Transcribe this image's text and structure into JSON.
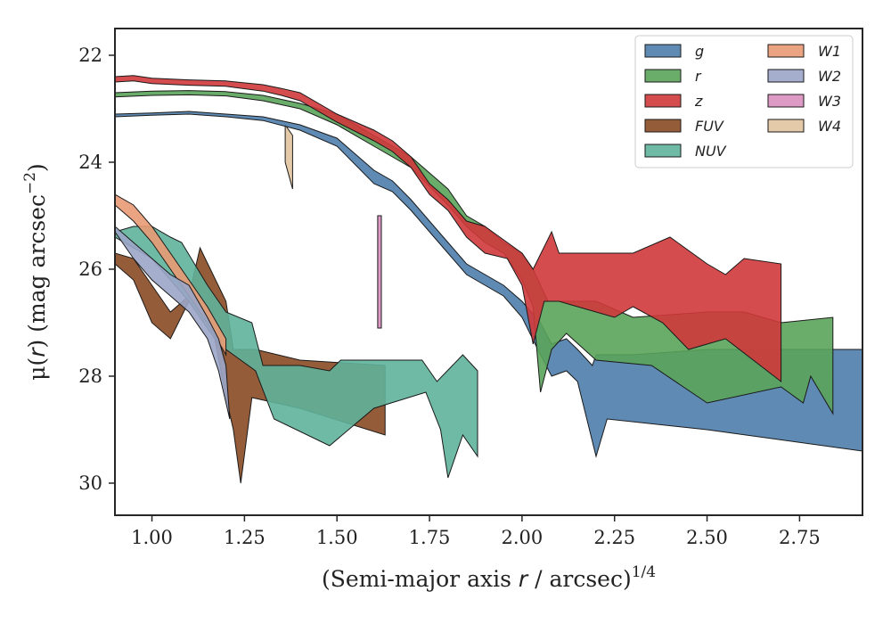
{
  "chart_data": {
    "type": "area",
    "xlabel_parts": [
      "(Semi-major axis ",
      "r",
      " / arcsec)",
      "1/4"
    ],
    "ylabel_parts": [
      "μ(",
      "r",
      ") (mag arcsec",
      "−2",
      ")"
    ],
    "xlim": [
      0.9,
      2.92
    ],
    "ylim": [
      30.6,
      21.5
    ],
    "y_inverted": true,
    "xticks": [
      1.0,
      1.25,
      1.5,
      1.75,
      2.0,
      2.25,
      2.5,
      2.75
    ],
    "xtick_labels": [
      "1.00",
      "1.25",
      "1.50",
      "1.75",
      "2.00",
      "2.25",
      "2.50",
      "2.75"
    ],
    "yticks": [
      22,
      24,
      26,
      28,
      30
    ],
    "ytick_labels": [
      "22",
      "24",
      "26",
      "28",
      "30"
    ],
    "legend_position": "top-right",
    "series": [
      {
        "name": "FUV",
        "color": "#8a4a23",
        "upper": [
          [
            0.9,
            25.7
          ],
          [
            0.95,
            25.8
          ],
          [
            1.0,
            26.3
          ],
          [
            1.05,
            26.8
          ],
          [
            1.1,
            26.5
          ],
          [
            1.13,
            25.6
          ],
          [
            1.2,
            26.6
          ],
          [
            1.22,
            27.5
          ],
          [
            1.25,
            27.5
          ],
          [
            1.28,
            27.5
          ],
          [
            1.4,
            27.7
          ],
          [
            1.63,
            27.8
          ]
        ],
        "lower": [
          [
            0.9,
            25.9
          ],
          [
            0.95,
            26.2
          ],
          [
            1.0,
            27.0
          ],
          [
            1.05,
            27.3
          ],
          [
            1.1,
            26.6
          ],
          [
            1.17,
            27.3
          ],
          [
            1.2,
            28.4
          ],
          [
            1.22,
            29.0
          ],
          [
            1.24,
            30.0
          ],
          [
            1.27,
            28.4
          ],
          [
            1.4,
            28.6
          ],
          [
            1.63,
            29.1
          ]
        ]
      },
      {
        "name": "NUV",
        "color": "#5fb39a",
        "upper": [
          [
            0.9,
            25.3
          ],
          [
            0.95,
            25.2
          ],
          [
            1.0,
            25.2
          ],
          [
            1.05,
            25.4
          ],
          [
            1.08,
            25.5
          ],
          [
            1.15,
            26.3
          ],
          [
            1.2,
            26.8
          ],
          [
            1.27,
            27.0
          ],
          [
            1.3,
            27.8
          ],
          [
            1.4,
            27.8
          ],
          [
            1.48,
            27.9
          ],
          [
            1.51,
            27.7
          ],
          [
            1.6,
            27.7
          ],
          [
            1.73,
            27.7
          ],
          [
            1.77,
            28.1
          ],
          [
            1.84,
            27.6
          ],
          [
            1.88,
            27.9
          ]
        ],
        "lower": [
          [
            0.9,
            25.4
          ],
          [
            0.95,
            25.6
          ],
          [
            1.0,
            25.8
          ],
          [
            1.05,
            26.2
          ],
          [
            1.1,
            26.6
          ],
          [
            1.18,
            27.4
          ],
          [
            1.22,
            27.6
          ],
          [
            1.28,
            27.9
          ],
          [
            1.33,
            28.8
          ],
          [
            1.48,
            29.3
          ],
          [
            1.6,
            28.6
          ],
          [
            1.74,
            28.3
          ],
          [
            1.78,
            29.0
          ],
          [
            1.8,
            29.9
          ],
          [
            1.84,
            29.1
          ],
          [
            1.88,
            29.5
          ]
        ]
      },
      {
        "name": "W1",
        "color": "#e89a74",
        "upper": [
          [
            0.9,
            24.6
          ],
          [
            0.95,
            24.8
          ],
          [
            1.0,
            25.2
          ],
          [
            1.05,
            25.7
          ],
          [
            1.1,
            26.2
          ],
          [
            1.15,
            26.7
          ],
          [
            1.2,
            27.3
          ]
        ],
        "lower": [
          [
            0.9,
            24.8
          ],
          [
            0.95,
            25.1
          ],
          [
            1.0,
            25.5
          ],
          [
            1.05,
            26.0
          ],
          [
            1.1,
            26.5
          ],
          [
            1.15,
            27.0
          ],
          [
            1.2,
            27.6
          ]
        ]
      },
      {
        "name": "W2",
        "color": "#9ba6c8",
        "upper": [
          [
            0.9,
            25.2
          ],
          [
            0.95,
            25.5
          ],
          [
            1.0,
            25.8
          ],
          [
            1.05,
            26.1
          ],
          [
            1.1,
            26.3
          ],
          [
            1.15,
            26.9
          ],
          [
            1.18,
            27.3
          ],
          [
            1.2,
            27.8
          ]
        ],
        "lower": [
          [
            0.9,
            25.3
          ],
          [
            0.95,
            25.8
          ],
          [
            1.0,
            26.2
          ],
          [
            1.05,
            26.5
          ],
          [
            1.1,
            26.8
          ],
          [
            1.15,
            27.3
          ],
          [
            1.18,
            27.9
          ],
          [
            1.21,
            28.8
          ]
        ]
      },
      {
        "name": "W3",
        "color": "#d98fbe",
        "upper": [
          [
            1.61,
            25.0
          ],
          [
            1.62,
            25.0
          ]
        ],
        "lower": [
          [
            1.61,
            27.1
          ],
          [
            1.62,
            27.1
          ]
        ]
      },
      {
        "name": "W4",
        "color": "#e2c4a0",
        "upper": [
          [
            1.36,
            23.3
          ],
          [
            1.38,
            23.5
          ]
        ],
        "lower": [
          [
            1.36,
            24.0
          ],
          [
            1.38,
            24.5
          ]
        ]
      },
      {
        "name": "g",
        "color": "#4c7dab",
        "upper": [
          [
            0.9,
            23.1
          ],
          [
            1.0,
            23.08
          ],
          [
            1.1,
            23.05
          ],
          [
            1.2,
            23.1
          ],
          [
            1.3,
            23.15
          ],
          [
            1.4,
            23.3
          ],
          [
            1.5,
            23.55
          ],
          [
            1.6,
            24.15
          ],
          [
            1.65,
            24.35
          ],
          [
            1.7,
            24.7
          ],
          [
            1.75,
            25.1
          ],
          [
            1.8,
            25.5
          ],
          [
            1.85,
            25.9
          ],
          [
            1.9,
            26.1
          ],
          [
            1.95,
            26.3
          ],
          [
            2.0,
            26.6
          ],
          [
            2.05,
            27.0
          ],
          [
            2.08,
            27.4
          ],
          [
            2.12,
            27.3
          ],
          [
            2.15,
            27.5
          ],
          [
            2.19,
            27.8
          ],
          [
            2.2,
            27.6
          ],
          [
            2.3,
            27.6
          ],
          [
            2.5,
            27.5
          ],
          [
            2.92,
            27.5
          ]
        ],
        "lower": [
          [
            0.9,
            23.15
          ],
          [
            1.0,
            23.12
          ],
          [
            1.1,
            23.1
          ],
          [
            1.2,
            23.15
          ],
          [
            1.3,
            23.22
          ],
          [
            1.4,
            23.4
          ],
          [
            1.5,
            23.7
          ],
          [
            1.6,
            24.4
          ],
          [
            1.65,
            24.55
          ],
          [
            1.7,
            24.9
          ],
          [
            1.75,
            25.3
          ],
          [
            1.8,
            25.7
          ],
          [
            1.85,
            26.1
          ],
          [
            1.9,
            26.3
          ],
          [
            1.95,
            26.5
          ],
          [
            2.0,
            26.9
          ],
          [
            2.05,
            27.6
          ],
          [
            2.08,
            28.0
          ],
          [
            2.12,
            27.9
          ],
          [
            2.15,
            28.1
          ],
          [
            2.2,
            29.5
          ],
          [
            2.23,
            28.8
          ],
          [
            2.5,
            29.0
          ],
          [
            2.92,
            29.4
          ]
        ]
      },
      {
        "name": "r",
        "color": "#5aa35a",
        "upper": [
          [
            0.9,
            22.7
          ],
          [
            1.0,
            22.67
          ],
          [
            1.1,
            22.66
          ],
          [
            1.2,
            22.68
          ],
          [
            1.3,
            22.75
          ],
          [
            1.4,
            22.9
          ],
          [
            1.5,
            23.1
          ],
          [
            1.6,
            23.5
          ],
          [
            1.7,
            23.9
          ],
          [
            1.8,
            24.5
          ],
          [
            1.85,
            25.0
          ],
          [
            1.9,
            25.2
          ],
          [
            1.95,
            25.5
          ],
          [
            2.0,
            25.7
          ],
          [
            2.03,
            26.0
          ],
          [
            2.07,
            26.6
          ],
          [
            2.1,
            26.6
          ],
          [
            2.2,
            26.6
          ],
          [
            2.3,
            26.9
          ],
          [
            2.5,
            26.8
          ],
          [
            2.6,
            26.8
          ],
          [
            2.7,
            27.0
          ],
          [
            2.84,
            26.9
          ]
        ],
        "lower": [
          [
            0.9,
            22.78
          ],
          [
            1.0,
            22.75
          ],
          [
            1.1,
            22.74
          ],
          [
            1.2,
            22.76
          ],
          [
            1.3,
            22.85
          ],
          [
            1.4,
            23.0
          ],
          [
            1.5,
            23.3
          ],
          [
            1.6,
            23.7
          ],
          [
            1.7,
            24.1
          ],
          [
            1.8,
            24.8
          ],
          [
            1.85,
            25.2
          ],
          [
            1.9,
            25.5
          ],
          [
            1.95,
            25.7
          ],
          [
            2.0,
            26.2
          ],
          [
            2.03,
            26.7
          ],
          [
            2.05,
            28.3
          ],
          [
            2.08,
            27.5
          ],
          [
            2.12,
            27.2
          ],
          [
            2.2,
            27.7
          ],
          [
            2.35,
            27.8
          ],
          [
            2.5,
            28.5
          ],
          [
            2.7,
            28.2
          ],
          [
            2.76,
            28.5
          ],
          [
            2.78,
            28.0
          ],
          [
            2.84,
            28.7
          ]
        ]
      },
      {
        "name": "z",
        "color": "#d0393b",
        "upper": [
          [
            0.9,
            22.4
          ],
          [
            0.95,
            22.38
          ],
          [
            1.0,
            22.43
          ],
          [
            1.1,
            22.46
          ],
          [
            1.2,
            22.48
          ],
          [
            1.3,
            22.55
          ],
          [
            1.35,
            22.62
          ],
          [
            1.4,
            22.7
          ],
          [
            1.5,
            23.1
          ],
          [
            1.6,
            23.4
          ],
          [
            1.65,
            23.6
          ],
          [
            1.7,
            23.9
          ],
          [
            1.75,
            24.4
          ],
          [
            1.8,
            24.7
          ],
          [
            1.85,
            25.1
          ],
          [
            1.9,
            25.2
          ],
          [
            1.96,
            25.5
          ],
          [
            2.0,
            25.7
          ],
          [
            2.03,
            26.0
          ],
          [
            2.08,
            25.3
          ],
          [
            2.1,
            25.7
          ],
          [
            2.14,
            25.7
          ],
          [
            2.2,
            25.7
          ],
          [
            2.3,
            25.7
          ],
          [
            2.4,
            25.4
          ],
          [
            2.5,
            25.9
          ],
          [
            2.55,
            26.1
          ],
          [
            2.6,
            25.8
          ],
          [
            2.7,
            25.9
          ]
        ],
        "lower": [
          [
            0.9,
            22.5
          ],
          [
            0.95,
            22.48
          ],
          [
            1.0,
            22.53
          ],
          [
            1.1,
            22.56
          ],
          [
            1.2,
            22.58
          ],
          [
            1.3,
            22.67
          ],
          [
            1.35,
            22.75
          ],
          [
            1.4,
            22.85
          ],
          [
            1.5,
            23.25
          ],
          [
            1.6,
            23.6
          ],
          [
            1.65,
            23.8
          ],
          [
            1.7,
            24.1
          ],
          [
            1.75,
            24.6
          ],
          [
            1.8,
            24.9
          ],
          [
            1.85,
            25.4
          ],
          [
            1.9,
            25.7
          ],
          [
            1.96,
            25.8
          ],
          [
            2.0,
            26.3
          ],
          [
            2.03,
            27.4
          ],
          [
            2.06,
            26.6
          ],
          [
            2.1,
            26.6
          ],
          [
            2.15,
            26.7
          ],
          [
            2.25,
            26.9
          ],
          [
            2.3,
            26.7
          ],
          [
            2.38,
            27.0
          ],
          [
            2.45,
            27.5
          ],
          [
            2.55,
            27.3
          ],
          [
            2.7,
            28.1
          ]
        ]
      }
    ]
  }
}
